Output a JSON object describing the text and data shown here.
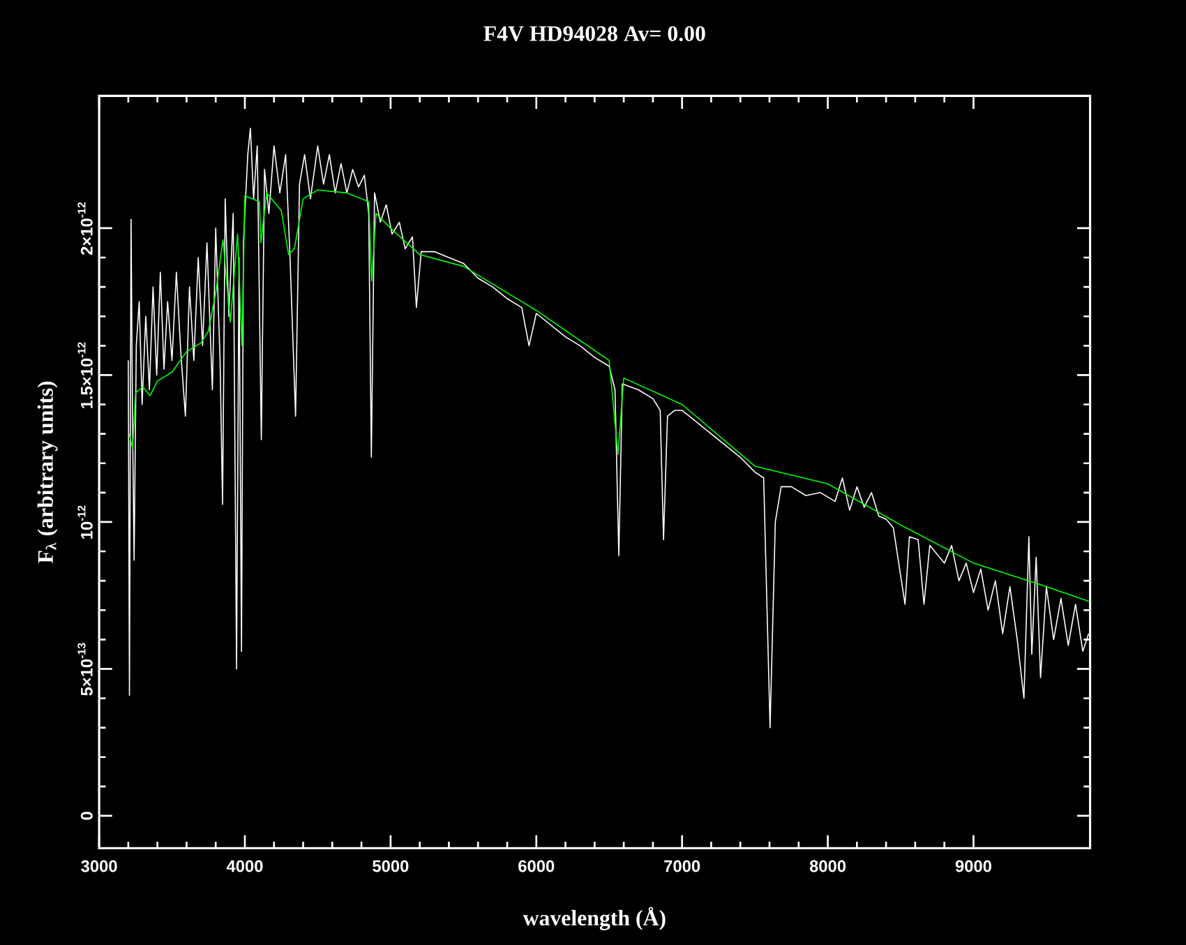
{
  "chart_data": {
    "type": "line",
    "title": "F4V  HD94028       Av=  0.00",
    "xlabel": "wavelength (Å)",
    "ylabel": "F$_{λ}$ (arbitrary units)",
    "xlim": [
      3000,
      9800
    ],
    "ylim": [
      -1.1e-13,
      2.45e-12
    ],
    "xticks": [
      3000,
      4000,
      5000,
      6000,
      7000,
      8000,
      9000
    ],
    "yticks": [
      0,
      {
        "value": 5e-13,
        "label": "5×10$^{-13}$"
      },
      {
        "value": 1e-12,
        "label": "10$^{-12}$"
      },
      {
        "value": 1.5e-12,
        "label": "1.5×10$^{-12}$"
      },
      {
        "value": 2e-12,
        "label": "2×10$^{-12}$"
      }
    ],
    "series": [
      {
        "color": "#ffffff",
        "x": [
          3200,
          3208,
          3219,
          3230,
          3240,
          3255,
          3275,
          3295,
          3320,
          3345,
          3370,
          3395,
          3420,
          3445,
          3470,
          3500,
          3530,
          3560,
          3592,
          3620,
          3650,
          3680,
          3710,
          3740,
          3777,
          3800,
          3830,
          3847,
          3865,
          3890,
          3920,
          3943,
          3960,
          3977,
          3990,
          4020,
          4038,
          4060,
          4085,
          4113,
          4135,
          4165,
          4200,
          4240,
          4280,
          4310,
          4348,
          4375,
          4410,
          4450,
          4500,
          4540,
          4580,
          4620,
          4660,
          4700,
          4740,
          4780,
          4820,
          4850,
          4868,
          4890,
          4930,
          4970,
          5010,
          5060,
          5100,
          5150,
          5177,
          5210,
          5300,
          5400,
          5500,
          5600,
          5700,
          5800,
          5900,
          5950,
          6000,
          6100,
          6200,
          6300,
          6400,
          6500,
          6540,
          6566,
          6590,
          6700,
          6800,
          6850,
          6873,
          6900,
          6950,
          7000,
          7100,
          7200,
          7300,
          7400,
          7500,
          7560,
          7604,
          7640,
          7680,
          7750,
          7850,
          7950,
          8050,
          8100,
          8150,
          8200,
          8250,
          8300,
          8350,
          8400,
          8450,
          8530,
          8560,
          8620,
          8660,
          8700,
          8800,
          8850,
          8900,
          8950,
          9000,
          9050,
          9100,
          9150,
          9200,
          9250,
          9300,
          9346,
          9380,
          9400,
          9430,
          9460,
          9500,
          9550,
          9600,
          9650,
          9700,
          9750,
          9790
        ],
        "values": [
          1.55e-12,
          4.1e-13,
          2.03e-12,
          1.3e-12,
          8.7e-13,
          1.6e-12,
          1.75e-12,
          1.4e-12,
          1.7e-12,
          1.45e-12,
          1.8e-12,
          1.5e-12,
          1.85e-12,
          1.52e-12,
          1.75e-12,
          1.55e-12,
          1.85e-12,
          1.58e-12,
          1.36e-12,
          1.8e-12,
          1.55e-12,
          1.9e-12,
          1.6e-12,
          1.95e-12,
          1.45e-12,
          2e-12,
          1.55e-12,
          1.06e-12,
          2.1e-12,
          1.7e-12,
          2.05e-12,
          5e-13,
          1.9e-12,
          5.6e-13,
          1.95e-12,
          2.25e-12,
          2.34e-12,
          2.1e-12,
          2.28e-12,
          1.28e-12,
          2.2e-12,
          2.05e-12,
          2.28e-12,
          2.12e-12,
          2.25e-12,
          1.9e-12,
          1.36e-12,
          2.15e-12,
          2.25e-12,
          2.1e-12,
          2.28e-12,
          2.15e-12,
          2.25e-12,
          2.12e-12,
          2.22e-12,
          2.12e-12,
          2.2e-12,
          2.14e-12,
          2.18e-12,
          2.05e-12,
          1.22e-12,
          2.12e-12,
          2.02e-12,
          2.08e-12,
          1.98e-12,
          2.02e-12,
          1.93e-12,
          1.97e-12,
          1.73e-12,
          1.92e-12,
          1.92e-12,
          1.9e-12,
          1.88e-12,
          1.83e-12,
          1.8e-12,
          1.76e-12,
          1.73e-12,
          1.6e-12,
          1.71e-12,
          1.67e-12,
          1.63e-12,
          1.6e-12,
          1.56e-12,
          1.53e-12,
          1.45e-12,
          8.85e-13,
          1.47e-12,
          1.45e-12,
          1.42e-12,
          1.38e-12,
          9.4e-13,
          1.36e-12,
          1.38e-12,
          1.38e-12,
          1.34e-12,
          1.3e-12,
          1.26e-12,
          1.22e-12,
          1.17e-12,
          1.15e-12,
          3e-13,
          1e-12,
          1.12e-12,
          1.12e-12,
          1.09e-12,
          1.1e-12,
          1.07e-12,
          1.15e-12,
          1.04e-12,
          1.12e-12,
          1.05e-12,
          1.1e-12,
          1.02e-12,
          1.01e-12,
          9.8e-13,
          7.2e-13,
          9.5e-13,
          9.4e-13,
          7.2e-13,
          9.2e-13,
          8.6e-13,
          9.2e-13,
          8e-13,
          8.6e-13,
          7.6e-13,
          8.4e-13,
          7e-13,
          8e-13,
          6.2e-13,
          7.8e-13,
          6e-13,
          4e-13,
          9.5e-13,
          5.5e-13,
          8.8e-13,
          4.7e-13,
          7.8e-13,
          6e-13,
          7.4e-13,
          5.8e-13,
          7.2e-13,
          5.6e-13,
          6.2e-13
        ]
      },
      {
        "color": "#00ff00",
        "x": [
          3206,
          3230,
          3250,
          3300,
          3350,
          3400,
          3500,
          3600,
          3700,
          3750,
          3800,
          3850,
          3900,
          3950,
          3980,
          4000,
          4100,
          4110,
          4150,
          4250,
          4300,
          4340,
          4400,
          4500,
          4700,
          4850,
          4870,
          4900,
          5000,
          5200,
          5500,
          6000,
          6500,
          6560,
          6600,
          7000,
          7500,
          8000,
          8500,
          9000,
          9500,
          9790
        ],
        "values": [
          1.3e-12,
          1.25e-12,
          1.44e-12,
          1.46e-12,
          1.43e-12,
          1.48e-12,
          1.51e-12,
          1.58e-12,
          1.61e-12,
          1.65e-12,
          1.78e-12,
          1.96e-12,
          1.68e-12,
          1.98e-12,
          1.6e-12,
          2.11e-12,
          2.09e-12,
          1.95e-12,
          2.12e-12,
          2.06e-12,
          1.91e-12,
          1.93e-12,
          2.1e-12,
          2.13e-12,
          2.12e-12,
          2.09e-12,
          1.82e-12,
          2.05e-12,
          2e-12,
          1.91e-12,
          1.87e-12,
          1.72e-12,
          1.55e-12,
          1.23e-12,
          1.49e-12,
          1.4e-12,
          1.19e-12,
          1.13e-12,
          9.9e-13,
          8.6e-13,
          7.8e-13,
          7.3e-13
        ]
      }
    ]
  }
}
